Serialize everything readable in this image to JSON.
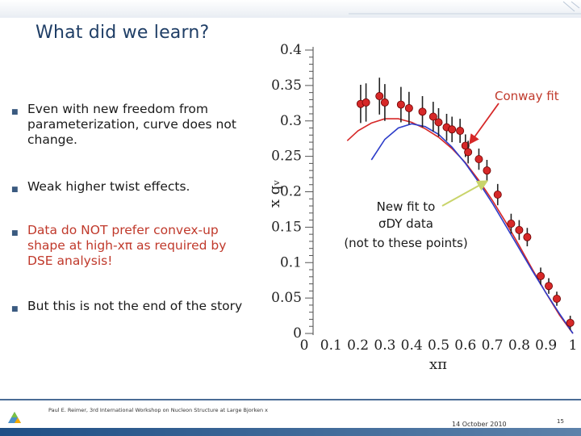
{
  "slide": {
    "title": "What did we learn?",
    "bullets": [
      {
        "text": "Even with new freedom from parameterization, curve does not change.",
        "color": "#1a1a1a"
      },
      {
        "text": "Weak higher twist effects.",
        "color": "#1a1a1a"
      },
      {
        "text": "Data do NOT prefer convex-up shape at high-xπ as required by DSE analysis!",
        "color": "#c0392b"
      },
      {
        "text": "But this is not the end of the story",
        "color": "#1a1a1a"
      }
    ],
    "footer": {
      "author": "Paul E. Reimer, 3rd International Workshop on Nucleon Structure at Large Bjorken x",
      "date": "14 October 2010",
      "page": "15"
    },
    "colors": {
      "title": "#1f3e66",
      "accent_red": "#c0392b",
      "footer_blue": "#1f4f86"
    }
  },
  "chart_data": {
    "type": "scatter",
    "title": "",
    "xlabel": "xπ",
    "ylabel": "x qᵥ",
    "xlim": [
      0,
      1
    ],
    "ylim": [
      0,
      0.4
    ],
    "x_ticks": [
      "0",
      "0.1",
      "0.2",
      "0.3",
      "0.4",
      "0.5",
      "0.6",
      "0.7",
      "0.8",
      "0.9",
      "1"
    ],
    "y_ticks": [
      "0",
      "0.05",
      "0.1",
      "0.15",
      "0.2",
      "0.25",
      "0.3",
      "0.35",
      "0.4"
    ],
    "grid": false,
    "annotations": [
      {
        "text": "Conway fit",
        "color": "#c0392b"
      },
      {
        "text": "New fit to",
        "color": "#1a1a1a"
      },
      {
        "text": "σDY data",
        "color": "#1a1a1a"
      },
      {
        "text": "(not to these points)",
        "color": "#1a1a1a"
      }
    ],
    "series": [
      {
        "name": "",
        "type": "scatter",
        "color": "#d62828",
        "points": [
          {
            "x": 0.21,
            "y": 0.324,
            "err": 0.027
          },
          {
            "x": 0.23,
            "y": 0.326,
            "err": 0.027
          },
          {
            "x": 0.28,
            "y": 0.335,
            "err": 0.026
          },
          {
            "x": 0.3,
            "y": 0.326,
            "err": 0.026
          },
          {
            "x": 0.36,
            "y": 0.323,
            "err": 0.025
          },
          {
            "x": 0.39,
            "y": 0.318,
            "err": 0.023
          },
          {
            "x": 0.44,
            "y": 0.313,
            "err": 0.022
          },
          {
            "x": 0.48,
            "y": 0.306,
            "err": 0.021
          },
          {
            "x": 0.5,
            "y": 0.298,
            "err": 0.02
          },
          {
            "x": 0.53,
            "y": 0.291,
            "err": 0.019
          },
          {
            "x": 0.55,
            "y": 0.288,
            "err": 0.018
          },
          {
            "x": 0.58,
            "y": 0.286,
            "err": 0.017
          },
          {
            "x": 0.6,
            "y": 0.265,
            "err": 0.016
          },
          {
            "x": 0.61,
            "y": 0.256,
            "err": 0.016
          },
          {
            "x": 0.65,
            "y": 0.246,
            "err": 0.015
          },
          {
            "x": 0.68,
            "y": 0.23,
            "err": 0.015
          },
          {
            "x": 0.72,
            "y": 0.196,
            "err": 0.015
          },
          {
            "x": 0.77,
            "y": 0.155,
            "err": 0.014
          },
          {
            "x": 0.8,
            "y": 0.146,
            "err": 0.014
          },
          {
            "x": 0.83,
            "y": 0.136,
            "err": 0.013
          },
          {
            "x": 0.88,
            "y": 0.081,
            "err": 0.012
          },
          {
            "x": 0.91,
            "y": 0.067,
            "err": 0.011
          },
          {
            "x": 0.94,
            "y": 0.049,
            "err": 0.01
          },
          {
            "x": 0.99,
            "y": 0.015,
            "err": 0.01
          }
        ]
      },
      {
        "name": "",
        "type": "line",
        "color": "#d62828",
        "x": [
          0.16,
          0.2,
          0.25,
          0.3,
          0.35,
          0.4,
          0.45,
          0.5,
          0.55,
          0.6,
          0.65,
          0.7,
          0.75,
          0.8,
          0.85,
          0.9,
          0.95,
          1.0
        ],
        "y": [
          0.272,
          0.286,
          0.297,
          0.303,
          0.303,
          0.298,
          0.289,
          0.277,
          0.261,
          0.241,
          0.216,
          0.188,
          0.157,
          0.124,
          0.09,
          0.057,
          0.026,
          0.0
        ]
      },
      {
        "name": "",
        "type": "line",
        "color": "#2c3cc9",
        "x": [
          0.25,
          0.3,
          0.35,
          0.4,
          0.45,
          0.5,
          0.55,
          0.6,
          0.65,
          0.7,
          0.75,
          0.8,
          0.85,
          0.9,
          0.95,
          1.0
        ],
        "y": [
          0.245,
          0.274,
          0.29,
          0.296,
          0.292,
          0.281,
          0.263,
          0.24,
          0.213,
          0.184,
          0.152,
          0.12,
          0.088,
          0.057,
          0.028,
          0.0
        ]
      }
    ]
  }
}
